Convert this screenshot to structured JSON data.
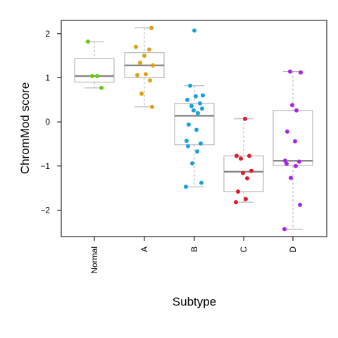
{
  "chart_data": {
    "type": "box",
    "xlabel": "Subtype",
    "ylabel": "ChromMod score",
    "ylim": [
      -2.6,
      2.3
    ],
    "yticks": [
      -2,
      -1,
      0,
      1,
      2
    ],
    "categories": [
      "Normal",
      "A",
      "B",
      "C",
      "D"
    ],
    "colors": {
      "Normal": "#66cc11",
      "A": "#e0a010",
      "B": "#1aa0e0",
      "C": "#dd1c2c",
      "D": "#aa22ee"
    },
    "boxes": [
      {
        "category": "Normal",
        "min": 0.77,
        "q1": 0.9,
        "median": 1.04,
        "q3": 1.43,
        "max": 1.82
      },
      {
        "category": "A",
        "min": 0.34,
        "q1": 1.0,
        "median": 1.28,
        "q3": 1.57,
        "max": 2.13
      },
      {
        "category": "B",
        "min": -1.47,
        "q1": -0.52,
        "median": 0.14,
        "q3": 0.42,
        "max": 0.82
      },
      {
        "category": "C",
        "min": -1.82,
        "q1": -1.58,
        "median": -1.13,
        "q3": -0.77,
        "max": 0.07
      },
      {
        "category": "D",
        "min": -2.43,
        "q1": -0.99,
        "median": -0.88,
        "q3": 0.26,
        "max": 1.14
      }
    ],
    "points": [
      {
        "category": "Normal",
        "values": [
          1.82,
          1.04,
          1.04,
          0.77
        ]
      },
      {
        "category": "A",
        "values": [
          2.13,
          1.7,
          1.64,
          1.5,
          1.34,
          1.28,
          1.08,
          1.06,
          0.94,
          0.64,
          0.34
        ]
      },
      {
        "category": "B",
        "values": [
          2.07,
          0.82,
          0.6,
          0.58,
          0.5,
          0.42,
          0.36,
          0.3,
          0.26,
          0.2,
          -0.06,
          -0.18,
          -0.43,
          -0.49,
          -0.55,
          -0.67,
          -0.94,
          -1.38,
          -1.47
        ]
      },
      {
        "category": "C",
        "values": [
          0.07,
          -0.77,
          -0.77,
          -0.83,
          -1.11,
          -1.16,
          -1.28,
          -1.58,
          -1.75,
          -1.82
        ]
      },
      {
        "category": "D",
        "values": [
          1.14,
          1.12,
          0.38,
          0.26,
          -0.22,
          -0.44,
          -0.88,
          -0.9,
          -0.95,
          -1.0,
          -1.27,
          -1.88,
          -2.43
        ]
      }
    ]
  }
}
